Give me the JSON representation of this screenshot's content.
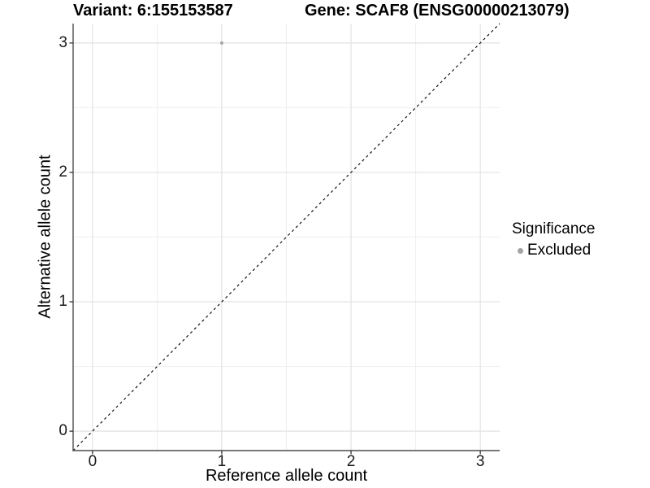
{
  "chart_data": {
    "type": "scatter",
    "title_left": "Variant: 6:155153587",
    "title_right": "Gene: SCAF8 (ENSG00000213079)",
    "xlabel": "Reference allele count",
    "ylabel": "Alternative allele count",
    "xlim": [
      -0.15,
      3.15
    ],
    "ylim": [
      -0.15,
      3.15
    ],
    "x_major_ticks": [
      0,
      1,
      2,
      3
    ],
    "y_major_ticks": [
      0,
      1,
      2,
      3
    ],
    "x_minor_ticks": [
      0.5,
      1.5,
      2.5
    ],
    "y_minor_ticks": [
      0.5,
      1.5,
      2.5
    ],
    "grid": "on",
    "reference_line": {
      "kind": "identity y = x",
      "from": [
        -0.15,
        -0.15
      ],
      "to": [
        3.15,
        3.15
      ],
      "style": "dashed",
      "color": "#000000"
    },
    "series": [
      {
        "name": "Excluded",
        "marker": "circle",
        "color": "#a8a8a8",
        "points": [
          {
            "x": 1,
            "y": 3
          }
        ]
      }
    ],
    "legend": {
      "title": "Significance",
      "position": "right",
      "entries": [
        {
          "label": "Excluded",
          "marker": "circle",
          "color": "#a3a3a3"
        }
      ]
    }
  },
  "colors": {
    "background": "#ffffff",
    "grid_major": "#e2e2e2",
    "grid_minor": "#eeeeee",
    "axis_line": "#4d4d4d",
    "tick_mark": "#333333",
    "tick_text": "#1a1a1a",
    "title_text": "#000000"
  }
}
